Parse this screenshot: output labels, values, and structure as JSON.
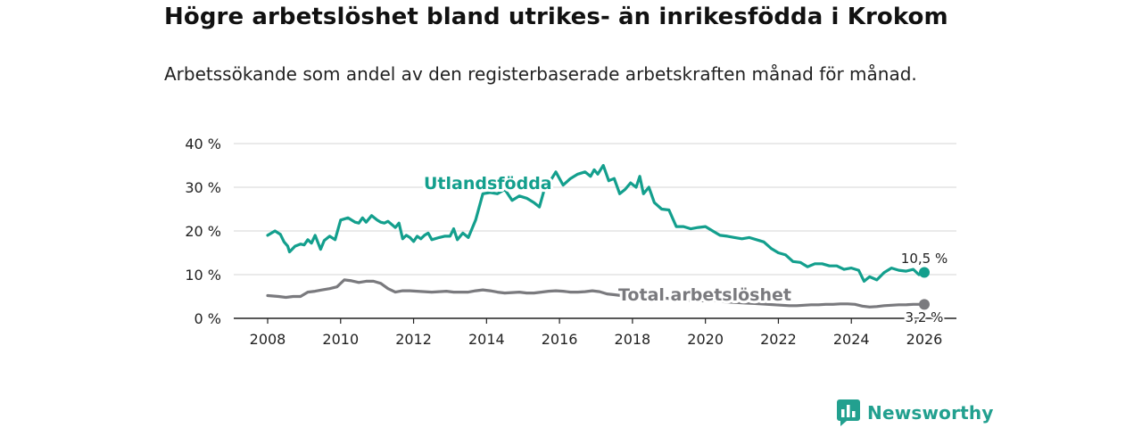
{
  "chart_data": {
    "type": "line",
    "title": "Högre arbetslöshet bland utrikes- än inrikesfödda i Krokom",
    "subtitle": "Arbetssökande som andel av den registerbaserade arbetskraften månad för månad.",
    "xlabel": "",
    "ylabel": "",
    "xlim": [
      2007.6,
      2026.5
    ],
    "ylim": [
      0,
      40
    ],
    "y_ticks": [
      "0 %",
      "10 %",
      "20 %",
      "30 %",
      "40 %"
    ],
    "x_ticks": [
      "2008",
      "2010",
      "2012",
      "2014",
      "2016",
      "2018",
      "2020",
      "2022",
      "2024",
      "2026"
    ],
    "grid": true,
    "series": [
      {
        "name": "Utlandsfödda",
        "color": "#139f8d",
        "end_label": "10,5 %",
        "x": [
          2008.0,
          2008.2,
          2008.35,
          2008.45,
          2008.55,
          2008.6,
          2008.75,
          2008.9,
          2009.0,
          2009.1,
          2009.2,
          2009.3,
          2009.45,
          2009.55,
          2009.7,
          2009.85,
          2010.0,
          2010.2,
          2010.4,
          2010.5,
          2010.6,
          2010.7,
          2010.85,
          2011.0,
          2011.1,
          2011.2,
          2011.3,
          2011.4,
          2011.5,
          2011.6,
          2011.7,
          2011.8,
          2011.9,
          2012.0,
          2012.1,
          2012.2,
          2012.3,
          2012.4,
          2012.5,
          2012.7,
          2012.85,
          2013.0,
          2013.1,
          2013.2,
          2013.35,
          2013.5,
          2013.7,
          2013.9,
          2014.1,
          2014.3,
          2014.5,
          2014.7,
          2014.9,
          2015.1,
          2015.3,
          2015.45,
          2015.6,
          2015.75,
          2015.9,
          2016.1,
          2016.3,
          2016.5,
          2016.7,
          2016.85,
          2016.95,
          2017.05,
          2017.2,
          2017.35,
          2017.5,
          2017.65,
          2017.8,
          2017.95,
          2018.1,
          2018.2,
          2018.3,
          2018.45,
          2018.6,
          2018.8,
          2019.0,
          2019.2,
          2019.4,
          2019.6,
          2019.8,
          2020.0,
          2020.2,
          2020.4,
          2020.6,
          2020.8,
          2021.0,
          2021.2,
          2021.4,
          2021.6,
          2021.8,
          2022.0,
          2022.2,
          2022.4,
          2022.6,
          2022.8,
          2023.0,
          2023.2,
          2023.4,
          2023.6,
          2023.8,
          2024.0,
          2024.2,
          2024.35,
          2024.5,
          2024.7,
          2024.9,
          2025.1,
          2025.3,
          2025.5,
          2025.7,
          2025.85,
          2026.0
        ],
        "values": [
          19.0,
          20.0,
          19.2,
          17.5,
          16.5,
          15.2,
          16.5,
          17.0,
          16.8,
          18.0,
          17.2,
          19.0,
          15.8,
          17.8,
          18.8,
          18.0,
          22.5,
          23.0,
          22.0,
          21.8,
          23.0,
          22.0,
          23.5,
          22.5,
          22.0,
          21.8,
          22.2,
          21.5,
          20.8,
          21.8,
          18.2,
          19.0,
          18.5,
          17.6,
          18.8,
          18.2,
          19.0,
          19.5,
          18.0,
          18.5,
          18.8,
          18.8,
          20.5,
          18.0,
          19.5,
          18.5,
          22.5,
          28.5,
          28.8,
          28.5,
          29.5,
          27.0,
          28.0,
          27.5,
          26.5,
          25.5,
          30.0,
          31.5,
          33.5,
          30.5,
          32.0,
          33.0,
          33.5,
          32.5,
          34.0,
          33.0,
          35.0,
          31.5,
          32.0,
          28.5,
          29.5,
          31.0,
          30.0,
          32.5,
          28.5,
          30.0,
          26.5,
          25.0,
          24.8,
          21.0,
          21.0,
          20.5,
          20.8,
          21.0,
          20.0,
          19.0,
          18.8,
          18.5,
          18.2,
          18.5,
          18.0,
          17.5,
          16.0,
          15.0,
          14.5,
          13.0,
          12.8,
          11.8,
          12.5,
          12.5,
          12.0,
          12.0,
          11.2,
          11.5,
          11.0,
          8.5,
          9.5,
          8.8,
          10.5,
          11.5,
          11.0,
          10.8,
          11.2,
          10.0,
          10.5
        ]
      },
      {
        "name": "Total arbetslöshet",
        "color": "#7a7a7e",
        "end_label": "3,2 %",
        "x": [
          2008.0,
          2008.3,
          2008.5,
          2008.7,
          2008.9,
          2009.1,
          2009.3,
          2009.5,
          2009.7,
          2009.9,
          2010.1,
          2010.3,
          2010.5,
          2010.7,
          2010.9,
          2011.1,
          2011.3,
          2011.5,
          2011.7,
          2011.9,
          2012.1,
          2012.3,
          2012.5,
          2012.7,
          2012.9,
          2013.1,
          2013.3,
          2013.5,
          2013.7,
          2013.9,
          2014.1,
          2014.3,
          2014.5,
          2014.7,
          2014.9,
          2015.1,
          2015.3,
          2015.5,
          2015.7,
          2015.9,
          2016.1,
          2016.3,
          2016.5,
          2016.7,
          2016.9,
          2017.1,
          2017.3,
          2017.5,
          2017.7,
          2017.9,
          2018.1,
          2018.3,
          2018.5,
          2018.7,
          2018.9,
          2019.1,
          2019.3,
          2019.5,
          2019.7,
          2019.9,
          2020.1,
          2020.3,
          2020.5,
          2020.7,
          2020.9,
          2021.1,
          2021.3,
          2021.5,
          2021.7,
          2021.9,
          2022.1,
          2022.3,
          2022.5,
          2022.7,
          2022.9,
          2023.1,
          2023.3,
          2023.5,
          2023.7,
          2023.9,
          2024.1,
          2024.3,
          2024.5,
          2024.7,
          2024.9,
          2025.1,
          2025.3,
          2025.5,
          2025.7,
          2025.9,
          2026.0
        ],
        "values": [
          5.2,
          5.0,
          4.8,
          5.0,
          5.0,
          6.0,
          6.2,
          6.5,
          6.8,
          7.2,
          8.8,
          8.6,
          8.2,
          8.5,
          8.5,
          8.0,
          6.8,
          6.0,
          6.3,
          6.3,
          6.2,
          6.1,
          6.0,
          6.1,
          6.2,
          6.0,
          6.0,
          6.0,
          6.3,
          6.5,
          6.3,
          6.0,
          5.8,
          5.9,
          6.0,
          5.8,
          5.8,
          6.0,
          6.2,
          6.3,
          6.2,
          6.0,
          6.0,
          6.1,
          6.3,
          6.1,
          5.6,
          5.4,
          5.2,
          5.0,
          5.0,
          4.9,
          4.8,
          4.7,
          4.6,
          4.5,
          4.3,
          4.2,
          4.0,
          4.0,
          4.1,
          4.0,
          3.8,
          3.7,
          3.6,
          3.5,
          3.4,
          3.3,
          3.2,
          3.1,
          3.0,
          2.9,
          2.9,
          3.0,
          3.1,
          3.1,
          3.2,
          3.2,
          3.3,
          3.3,
          3.2,
          2.8,
          2.6,
          2.7,
          2.9,
          3.0,
          3.1,
          3.1,
          3.2,
          3.2,
          3.2
        ]
      }
    ]
  },
  "brand": {
    "name": "Newsworthy",
    "icon": "bar-chart-logo-icon",
    "color": "#22a08f"
  }
}
